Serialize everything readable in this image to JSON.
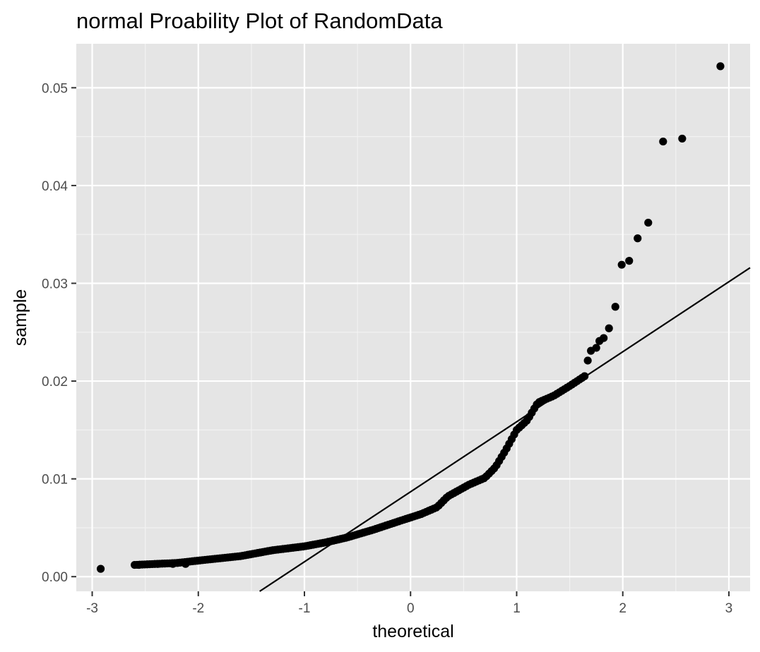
{
  "chart_data": {
    "type": "scatter",
    "title": "normal Proability Plot of RandomData",
    "xlabel": "theoretical",
    "ylabel": "sample",
    "xlim": [
      -3.15,
      3.2
    ],
    "ylim": [
      -0.0015,
      0.0545
    ],
    "x_ticks": [
      -3,
      -2,
      -1,
      0,
      1,
      2,
      3
    ],
    "x_tick_labels": [
      "-3",
      "-2",
      "-1",
      "0",
      "1",
      "2",
      "3"
    ],
    "y_ticks": [
      0,
      0.01,
      0.02,
      0.03,
      0.04,
      0.05
    ],
    "y_tick_labels": [
      "0.00",
      "0.01",
      "0.02",
      "0.03",
      "0.04",
      "0.05"
    ],
    "grid": true,
    "background_color": "#e5e5e5",
    "point_color": "#000000",
    "reference_line": {
      "slope": 0.00716,
      "intercept": 0.00868
    },
    "knots": [
      [
        -2.6,
        0.0012
      ],
      [
        -2.2,
        0.0014
      ],
      [
        -1.95,
        0.0017
      ],
      [
        -1.6,
        0.0021
      ],
      [
        -1.3,
        0.0027
      ],
      [
        -1.0,
        0.0031
      ],
      [
        -0.8,
        0.0035
      ],
      [
        -0.6,
        0.004
      ],
      [
        -0.35,
        0.0048
      ],
      [
        -0.1,
        0.0057
      ],
      [
        0.1,
        0.0064
      ],
      [
        0.25,
        0.0071
      ],
      [
        0.35,
        0.0082
      ],
      [
        0.55,
        0.0094
      ],
      [
        0.7,
        0.0101
      ],
      [
        0.8,
        0.0112
      ],
      [
        0.9,
        0.013
      ],
      [
        1.0,
        0.015
      ],
      [
        1.1,
        0.016
      ],
      [
        1.2,
        0.0178
      ],
      [
        1.35,
        0.0185
      ],
      [
        1.5,
        0.0195
      ],
      [
        1.64,
        0.0205
      ]
    ],
    "n_dense_points": 180,
    "tail_points": [
      [
        -2.92,
        0.0008
      ],
      [
        -2.56,
        0.0012
      ],
      [
        -2.38,
        0.0013
      ],
      [
        -2.24,
        0.0013
      ],
      [
        -2.12,
        0.0013
      ],
      [
        1.67,
        0.0221
      ],
      [
        1.7,
        0.0231
      ],
      [
        1.75,
        0.0234
      ],
      [
        1.78,
        0.0241
      ],
      [
        1.82,
        0.0244
      ],
      [
        1.87,
        0.0254
      ],
      [
        1.93,
        0.0276
      ],
      [
        1.99,
        0.0319
      ],
      [
        2.06,
        0.0323
      ],
      [
        2.14,
        0.0346
      ],
      [
        2.24,
        0.0362
      ],
      [
        2.38,
        0.0445
      ],
      [
        2.56,
        0.0448
      ],
      [
        2.92,
        0.0522
      ]
    ]
  }
}
